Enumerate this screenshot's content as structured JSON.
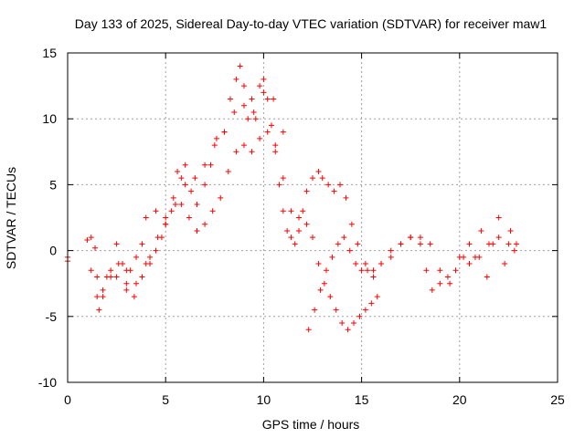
{
  "chart_data": {
    "type": "scatter",
    "title": "Day 133 of 2025, Sidereal Day-to-day VTEC variation (SDTVAR) for receiver maw1",
    "xlabel": "GPS time / hours",
    "ylabel": "SDTVAR / TECUs",
    "xlim": [
      0,
      25
    ],
    "ylim": [
      -10,
      15
    ],
    "xticks": [
      0,
      5,
      10,
      15,
      20,
      25
    ],
    "yticks": [
      -10,
      -5,
      0,
      5,
      10,
      15
    ],
    "grid": true,
    "marker": "+",
    "color": "#ff0000",
    "series": [
      {
        "name": "SDTVAR",
        "x": [
          0.0,
          0.0,
          1.0,
          1.2,
          1.4,
          1.5,
          1.6,
          1.8,
          2.0,
          2.2,
          2.5,
          2.8,
          3.0,
          3.2,
          3.5,
          3.8,
          4.0,
          4.2,
          4.5,
          4.8,
          5.0,
          5.3,
          5.6,
          5.8,
          6.0,
          6.3,
          6.6,
          7.0,
          7.3,
          7.6,
          8.0,
          8.3,
          8.6,
          8.8,
          9.0,
          9.2,
          9.4,
          9.6,
          9.8,
          10.0,
          10.2,
          10.4,
          10.6,
          10.8,
          11.0,
          11.2,
          11.4,
          11.6,
          11.8,
          12.0,
          12.2,
          12.5,
          12.8,
          13.0,
          13.3,
          13.6,
          13.9,
          14.2,
          14.5,
          14.8,
          15.2,
          15.6,
          16.0,
          16.5,
          17.0,
          17.5,
          18.0,
          18.5,
          19.0,
          19.5,
          20.0,
          20.5,
          21.0,
          21.5,
          22.0,
          22.5,
          22.8,
          1.2,
          1.5,
          1.8,
          2.2,
          2.6,
          3.0,
          3.4,
          3.8,
          4.2,
          4.6,
          5.0,
          5.4,
          5.8,
          6.2,
          6.6,
          7.0,
          7.4,
          7.8,
          8.2,
          8.6,
          9.0,
          9.4,
          9.8,
          10.2,
          10.6,
          11.0,
          11.4,
          11.8,
          12.2,
          12.5,
          12.8,
          13.1,
          13.4,
          13.7,
          14.0,
          14.3,
          14.6,
          14.9,
          15.2,
          15.5,
          15.8,
          12.3,
          12.6,
          12.9,
          13.2,
          13.5,
          13.8,
          14.1,
          14.4,
          14.7,
          15.0,
          15.3,
          15.6,
          16.0,
          16.5,
          17.0,
          17.5,
          18.0,
          18.3,
          18.6,
          19.0,
          19.4,
          19.8,
          2.5,
          3.0,
          3.5,
          4.0,
          4.5,
          5.0,
          5.5,
          6.0,
          6.5,
          7.0,
          7.5,
          8.0,
          8.5,
          9.0,
          9.5,
          10.0,
          10.5,
          11.0,
          20.2,
          20.5,
          20.8,
          21.1,
          21.4,
          21.7,
          22.0,
          22.3,
          22.6,
          22.9
        ],
        "y": [
          -0.5,
          -0.8,
          0.8,
          1.0,
          0.2,
          -2.0,
          -4.5,
          -3.5,
          -2.0,
          -1.5,
          -2.0,
          -1.0,
          -3.0,
          -1.5,
          -0.5,
          0.5,
          2.5,
          -1.0,
          3.0,
          1.0,
          2.0,
          3.0,
          6.0,
          5.5,
          6.5,
          4.5,
          3.5,
          5.0,
          6.5,
          8.5,
          9.0,
          11.5,
          13.0,
          14.0,
          12.5,
          10.0,
          11.5,
          10.0,
          12.5,
          13.0,
          11.5,
          9.5,
          8.0,
          5.0,
          3.0,
          1.5,
          1.0,
          0.5,
          1.5,
          3.0,
          4.5,
          5.5,
          6.0,
          5.5,
          5.0,
          4.5,
          5.0,
          4.0,
          2.0,
          0.5,
          -1.0,
          -1.5,
          -1.0,
          0.0,
          0.5,
          1.0,
          1.0,
          0.5,
          -1.5,
          -2.5,
          -0.5,
          0.5,
          -0.5,
          0.5,
          1.0,
          0.5,
          0.0,
          -1.5,
          -3.5,
          -3.0,
          -2.0,
          -1.0,
          -2.5,
          -3.5,
          -2.0,
          -0.5,
          1.0,
          2.5,
          4.0,
          3.5,
          2.5,
          1.5,
          2.0,
          3.0,
          4.0,
          6.0,
          7.5,
          8.0,
          7.5,
          8.5,
          9.0,
          7.5,
          5.5,
          3.0,
          2.5,
          2.0,
          1.0,
          -1.0,
          -2.5,
          -3.5,
          -4.5,
          -5.5,
          -6.0,
          -5.5,
          -5.0,
          -4.5,
          -4.0,
          -3.5,
          -6.0,
          -4.5,
          -3.0,
          -1.5,
          -0.5,
          0.5,
          1.0,
          0.0,
          -1.0,
          -1.5,
          -1.5,
          -2.0,
          -1.0,
          -0.5,
          0.5,
          1.0,
          0.5,
          -1.5,
          -3.0,
          -2.5,
          -2.0,
          -1.5,
          0.5,
          -1.5,
          -2.5,
          -1.0,
          0.0,
          2.0,
          3.5,
          5.0,
          5.5,
          6.5,
          8.0,
          9.0,
          10.5,
          11.0,
          10.5,
          12.0,
          11.5,
          9.0,
          -0.5,
          -1.0,
          -0.5,
          1.5,
          -2.0,
          0.5,
          2.5,
          -1.0,
          1.5,
          0.5
        ]
      }
    ]
  }
}
